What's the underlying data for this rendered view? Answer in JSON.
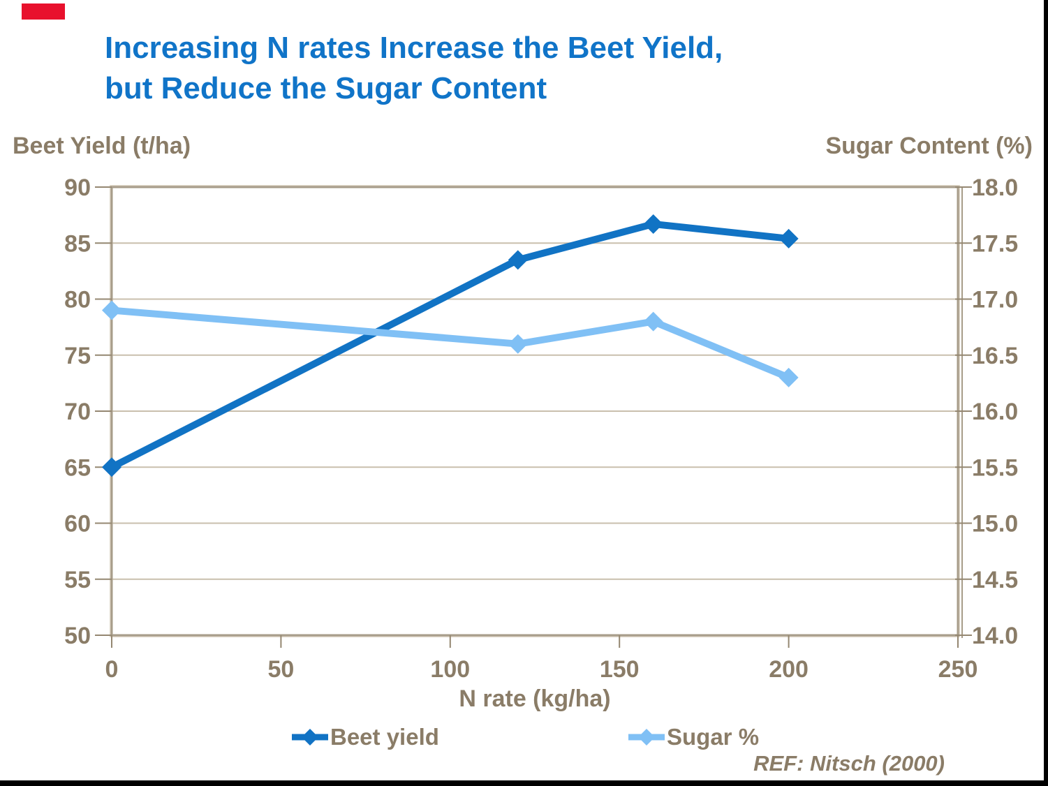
{
  "slide": {
    "title_line1": "Increasing N rates Increase the Beet Yield,",
    "title_line2": "but Reduce the Sugar Content",
    "reference": "REF: Nitsch (2000)",
    "colors": {
      "title": "#1074C8",
      "text": "#8A7C67",
      "grid": "#C9BFAD",
      "axis_border": "#A79C89",
      "tick": "#948771",
      "beet": "#1173C4",
      "sugar": "#80C0F5",
      "accent_red": "#E8112D",
      "slide_border": "#000000"
    }
  },
  "chart_data": {
    "type": "line",
    "title": "Increasing N rates Increase the Beet Yield, but Reduce the Sugar Content",
    "xlabel": "N rate (kg/ha)",
    "ylabel_left": "Beet Yield (t/ha)",
    "ylabel_right": "Sugar Content (%)",
    "x": [
      0,
      120,
      160,
      200
    ],
    "series": [
      {
        "name": "Beet yield",
        "axis": "left",
        "color": "#1173C4",
        "values": [
          65,
          83.5,
          86.7,
          85.4
        ]
      },
      {
        "name": "Sugar %",
        "axis": "right",
        "color": "#80C0F5",
        "values": [
          16.9,
          16.6,
          16.8,
          16.3
        ]
      }
    ],
    "x_range": [
      0,
      250
    ],
    "left_range": [
      50,
      90
    ],
    "right_range": [
      14.0,
      18.0
    ],
    "x_ticks": [
      "0",
      "50",
      "100",
      "150",
      "200",
      "250"
    ],
    "left_ticks": [
      "90",
      "85",
      "80",
      "75",
      "70",
      "65",
      "60",
      "55",
      "50"
    ],
    "right_ticks": [
      "18.0",
      "17.5",
      "17.0",
      "16.5",
      "16.0",
      "15.5",
      "15.0",
      "14.5",
      "14.0"
    ],
    "grid": true,
    "legend_position": "bottom"
  }
}
